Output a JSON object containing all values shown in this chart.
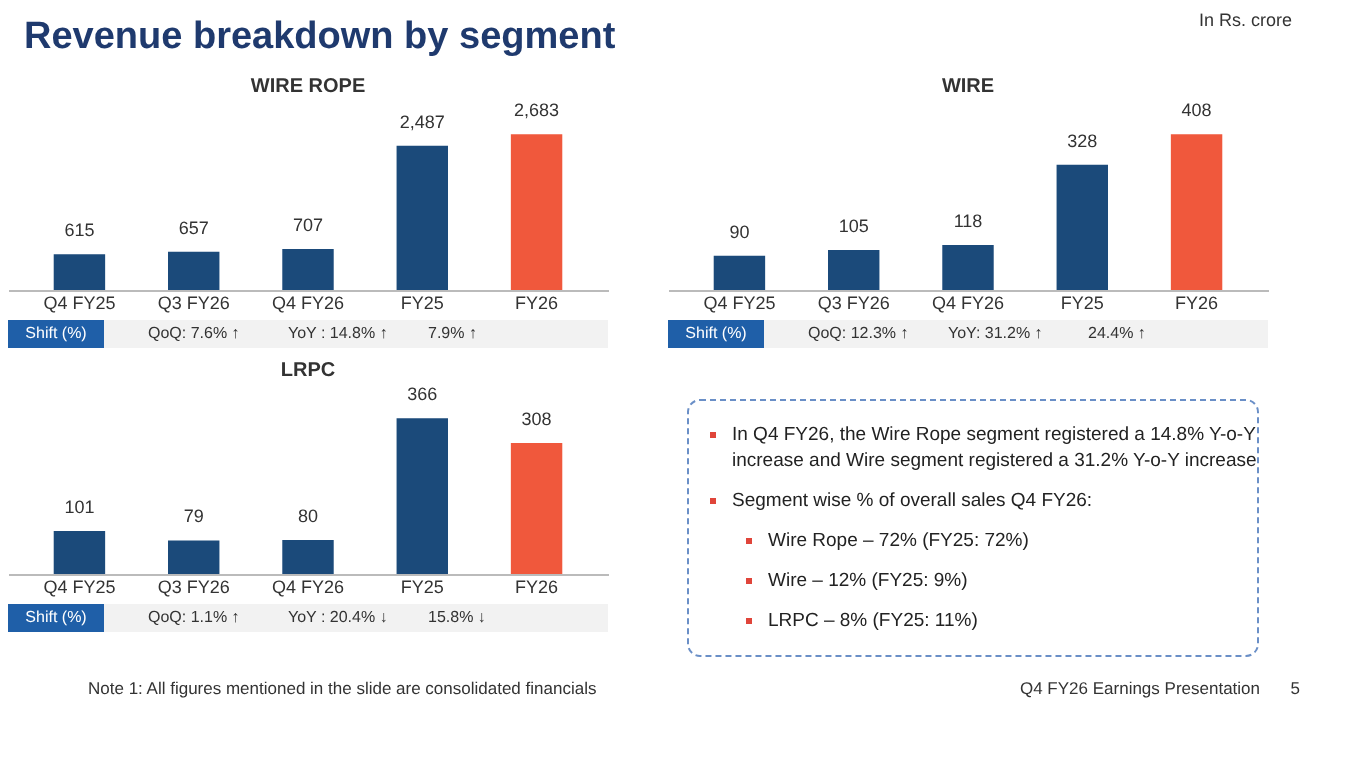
{
  "chart_data": [
    {
      "type": "other",
      "title": "Revenue breakdown by segment",
      "annotations": [
        "In Rs. crore"
      ]
    },
    {
      "type": "bar",
      "title": "WIRE ROPE",
      "categories": [
        "Q4 FY25",
        "Q3 FY26",
        "Q4 FY26",
        "FY25",
        "FY26"
      ],
      "values": [
        615,
        657,
        707,
        2487,
        2683
      ],
      "colors": [
        "#1b4a7a",
        "#1b4a7a",
        "#1b4a7a",
        "#1b4a7a",
        "#f0583c"
      ],
      "value_labels": [
        "615",
        "657",
        "707",
        "2,487",
        "2,683"
      ],
      "annotations": [
        "Shift (%)",
        "QoQ: 7.6% ↑",
        "YoY : 14.8% ↑",
        "7.9% ↑"
      ]
    },
    {
      "type": "bar",
      "title": "WIRE",
      "categories": [
        "Q4 FY25",
        "Q3 FY26",
        "Q4 FY26",
        "FY25",
        "FY26"
      ],
      "values": [
        90,
        105,
        118,
        328,
        408
      ],
      "colors": [
        "#1b4a7a",
        "#1b4a7a",
        "#1b4a7a",
        "#1b4a7a",
        "#f0583c"
      ],
      "value_labels": [
        "90",
        "105",
        "118",
        "328",
        "408"
      ],
      "annotations": [
        "Shift (%)",
        "QoQ: 12.3% ↑",
        "YoY: 31.2% ↑",
        "24.4% ↑"
      ]
    },
    {
      "type": "bar",
      "title": "LRPC",
      "categories": [
        "Q4 FY25",
        "Q3 FY26",
        "Q4 FY26",
        "FY25",
        "FY26"
      ],
      "values": [
        101,
        79,
        80,
        366,
        308
      ],
      "colors": [
        "#1b4a7a",
        "#1b4a7a",
        "#1b4a7a",
        "#1b4a7a",
        "#f0583c"
      ],
      "value_labels": [
        "101",
        "79",
        "80",
        "366",
        "308"
      ],
      "annotations": [
        "Shift (%)",
        "QoQ: 1.1% ↑",
        "YoY : 20.4% ↓",
        "15.8% ↓"
      ]
    },
    {
      "type": "other",
      "annotations": [
        "In Q4 FY26, the Wire Rope segment registered a 14.8% Y-o-Y increase and Wire segment registered a 31.2% Y-o-Y increase",
        "Segment wise % of overall sales Q4 FY26:",
        "Wire Rope – 72% (FY25: 72%)",
        "Wire – 12% (FY25: 9%)",
        "LRPC – 8% (FY25: 11%)"
      ]
    },
    {
      "type": "other",
      "annotations": [
        "Note 1: All figures mentioned in the slide are consolidated financials",
        "Q4 FY26 Earnings Presentation",
        "5"
      ]
    }
  ]
}
